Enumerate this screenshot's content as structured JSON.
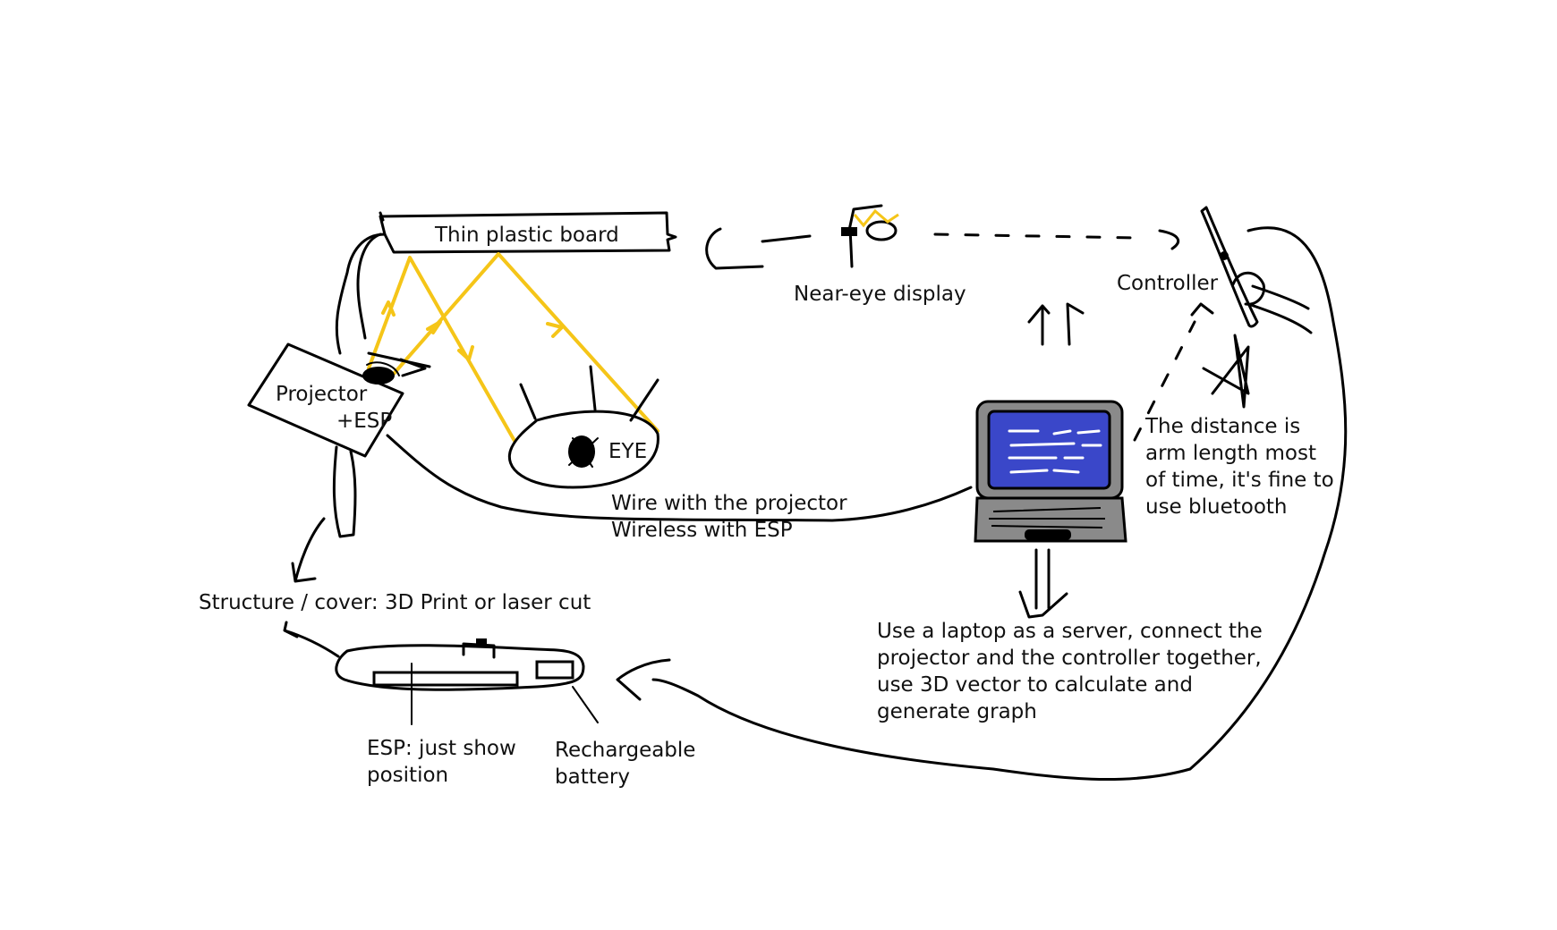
{
  "colors": {
    "ink": "#000000",
    "light_ray": "#f5c518",
    "laptop_screen": "#3a47c9",
    "laptop_body": "#8a8a8a",
    "background": "#ffffff"
  },
  "labels": {
    "board": "Thin plastic board",
    "near_eye": "Near-eye display",
    "controller": "Controller",
    "projector_line1": "Projector",
    "projector_line2": "+ESP",
    "eye": "EYE",
    "wire_line1": "Wire with the projector",
    "wire_line2": "Wireless with ESP",
    "distance_line1": "The distance is",
    "distance_line2": "arm length most",
    "distance_line3": "of time, it's fine to",
    "distance_line4": "use bluetooth",
    "structure": "Structure / cover: 3D Print or laser cut",
    "laptop_line1": "Use a laptop as a server, connect the",
    "laptop_line2": "projector and the controller together,",
    "laptop_line3": "use 3D vector to calculate and",
    "laptop_line4": "generate graph",
    "esp_line1": "ESP: just show",
    "esp_line2": "position",
    "battery_line1": "Rechargeable",
    "battery_line2": "battery"
  },
  "icons": [
    "eye-icon",
    "laptop-icon",
    "bluetooth-icon",
    "controller-icon",
    "near-eye-display-icon",
    "projector-icon",
    "battery-icon"
  ]
}
